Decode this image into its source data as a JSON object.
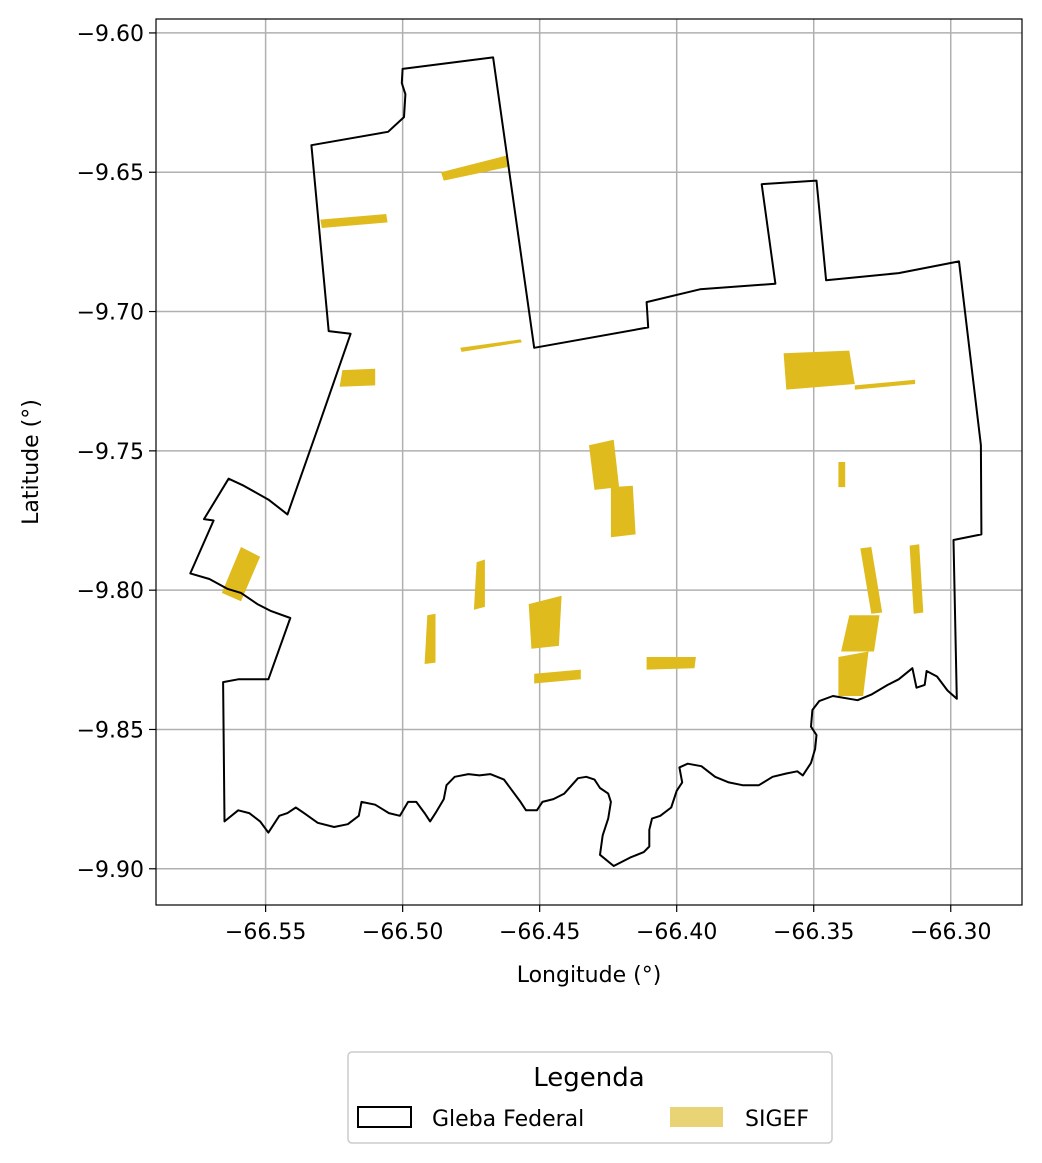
{
  "chart_data": {
    "type": "map",
    "xlabel": "Longitude (°)",
    "ylabel": "Latitude (°)",
    "xlim": [
      -66.59,
      -66.274
    ],
    "ylim": [
      -9.913,
      -9.595
    ],
    "x_ticks": [
      -66.55,
      -66.5,
      -66.45,
      -66.4,
      -66.35,
      -66.3
    ],
    "y_ticks": [
      -9.6,
      -9.65,
      -9.7,
      -9.75,
      -9.8,
      -9.85,
      -9.9
    ],
    "grid": true,
    "legend": {
      "title": "Legenda",
      "position": "bottom-center",
      "entries": [
        "Gleba Federal",
        "SIGEF"
      ]
    },
    "colors": {
      "gleba_outline": "#000000",
      "sigef_fill": "#dfbb1e",
      "sigef_legend_fill": "#e8d475",
      "grid": "#b0b0b0"
    },
    "gleba_federal_boundary": [
      [
        -66.5333,
        -9.6403
      ],
      [
        -66.5053,
        -9.6355
      ],
      [
        -66.4995,
        -9.6302
      ],
      [
        -66.499,
        -9.622
      ],
      [
        -66.5003,
        -9.618
      ],
      [
        -66.5,
        -9.6129
      ],
      [
        -66.467,
        -9.6088
      ],
      [
        -66.452,
        -9.713
      ],
      [
        -66.4104,
        -9.7057
      ],
      [
        -66.411,
        -9.6966
      ],
      [
        -66.3915,
        -9.692
      ],
      [
        -66.364,
        -9.69
      ],
      [
        -66.369,
        -9.6543
      ],
      [
        -66.349,
        -9.653
      ],
      [
        -66.3455,
        -9.6888
      ],
      [
        -66.319,
        -9.6862
      ],
      [
        -66.297,
        -9.682
      ],
      [
        -66.289,
        -9.748
      ],
      [
        -66.2888,
        -9.78
      ],
      [
        -66.299,
        -9.782
      ],
      [
        -66.2978,
        -9.839
      ],
      [
        -66.3012,
        -9.836
      ],
      [
        -66.305,
        -9.831
      ],
      [
        -66.3088,
        -9.829
      ],
      [
        -66.3095,
        -9.834
      ],
      [
        -66.3125,
        -9.835
      ],
      [
        -66.314,
        -9.828
      ],
      [
        -66.319,
        -9.832
      ],
      [
        -66.323,
        -9.834
      ],
      [
        -66.329,
        -9.8375
      ],
      [
        -66.334,
        -9.8395
      ],
      [
        -66.343,
        -9.838
      ],
      [
        -66.348,
        -9.8398
      ],
      [
        -66.3505,
        -9.843
      ],
      [
        -66.351,
        -9.849
      ],
      [
        -66.349,
        -9.852
      ],
      [
        -66.3495,
        -9.857
      ],
      [
        -66.351,
        -9.862
      ],
      [
        -66.354,
        -9.8665
      ],
      [
        -66.356,
        -9.865
      ],
      [
        -66.36,
        -9.8658
      ],
      [
        -66.365,
        -9.867
      ],
      [
        -66.37,
        -9.87
      ],
      [
        -66.376,
        -9.87
      ],
      [
        -66.381,
        -9.869
      ],
      [
        -66.386,
        -9.867
      ],
      [
        -66.391,
        -9.8632
      ],
      [
        -66.396,
        -9.8623
      ],
      [
        -66.399,
        -9.8636
      ],
      [
        -66.398,
        -9.869
      ],
      [
        -66.4,
        -9.872
      ],
      [
        -66.402,
        -9.878
      ],
      [
        -66.406,
        -9.881
      ],
      [
        -66.409,
        -9.882
      ],
      [
        -66.41,
        -9.886
      ],
      [
        -66.41,
        -9.892
      ],
      [
        -66.412,
        -9.894
      ],
      [
        -66.417,
        -9.896
      ],
      [
        -66.423,
        -9.899
      ],
      [
        -66.428,
        -9.895
      ],
      [
        -66.427,
        -9.888
      ],
      [
        -66.425,
        -9.882
      ],
      [
        -66.424,
        -9.876
      ],
      [
        -66.425,
        -9.873
      ],
      [
        -66.428,
        -9.871
      ],
      [
        -66.43,
        -9.868
      ],
      [
        -66.433,
        -9.867
      ],
      [
        -66.436,
        -9.8675
      ],
      [
        -66.441,
        -9.873
      ],
      [
        -66.445,
        -9.875
      ],
      [
        -66.449,
        -9.876
      ],
      [
        -66.451,
        -9.879
      ],
      [
        -66.455,
        -9.879
      ],
      [
        -66.457,
        -9.876
      ],
      [
        -66.46,
        -9.872
      ],
      [
        -66.463,
        -9.868
      ],
      [
        -66.468,
        -9.866
      ],
      [
        -66.472,
        -9.8665
      ],
      [
        -66.476,
        -9.866
      ],
      [
        -66.481,
        -9.867
      ],
      [
        -66.484,
        -9.87
      ],
      [
        -66.485,
        -9.875
      ],
      [
        -66.488,
        -9.88
      ],
      [
        -66.49,
        -9.883
      ],
      [
        -66.492,
        -9.88
      ],
      [
        -66.495,
        -9.876
      ],
      [
        -66.498,
        -9.876
      ],
      [
        -66.501,
        -9.881
      ],
      [
        -66.505,
        -9.88
      ],
      [
        -66.51,
        -9.877
      ],
      [
        -66.515,
        -9.876
      ],
      [
        -66.516,
        -9.881
      ],
      [
        -66.52,
        -9.884
      ],
      [
        -66.525,
        -9.885
      ],
      [
        -66.531,
        -9.8835
      ],
      [
        -66.536,
        -9.88
      ],
      [
        -66.539,
        -9.878
      ],
      [
        -66.542,
        -9.88
      ],
      [
        -66.545,
        -9.881
      ],
      [
        -66.549,
        -9.887
      ],
      [
        -66.552,
        -9.883
      ],
      [
        -66.556,
        -9.88
      ],
      [
        -66.56,
        -9.879
      ],
      [
        -66.565,
        -9.883
      ],
      [
        -66.5655,
        -9.833
      ],
      [
        -66.56,
        -9.832
      ],
      [
        -66.549,
        -9.832
      ],
      [
        -66.541,
        -9.81
      ],
      [
        -66.548,
        -9.8075
      ],
      [
        -66.553,
        -9.805
      ],
      [
        -66.559,
        -9.801
      ],
      [
        -66.564,
        -9.7995
      ],
      [
        -66.5705,
        -9.796
      ],
      [
        -66.5775,
        -9.794
      ],
      [
        -66.569,
        -9.775
      ],
      [
        -66.5725,
        -9.7745
      ],
      [
        -66.5635,
        -9.76
      ],
      [
        -66.558,
        -9.7625
      ],
      [
        -66.549,
        -9.7675
      ],
      [
        -66.542,
        -9.7728
      ],
      [
        -66.531,
        -9.742
      ],
      [
        -66.519,
        -9.708
      ],
      [
        -66.527,
        -9.707
      ]
    ],
    "sigef_parcels": [
      [
        [
          -66.486,
          -9.65
        ],
        [
          -66.462,
          -9.644
        ],
        [
          -66.461,
          -9.648
        ],
        [
          -66.485,
          -9.653
        ]
      ],
      [
        [
          -66.53,
          -9.667
        ],
        [
          -66.506,
          -9.665
        ],
        [
          -66.5055,
          -9.668
        ],
        [
          -66.5295,
          -9.67
        ]
      ],
      [
        [
          -66.479,
          -9.713
        ],
        [
          -66.457,
          -9.71
        ],
        [
          -66.4565,
          -9.711
        ],
        [
          -66.4785,
          -9.7145
        ]
      ],
      [
        [
          -66.522,
          -9.721
        ],
        [
          -66.51,
          -9.7205
        ],
        [
          -66.51,
          -9.7265
        ],
        [
          -66.523,
          -9.727
        ]
      ],
      [
        [
          -66.361,
          -9.715
        ],
        [
          -66.337,
          -9.714
        ],
        [
          -66.335,
          -9.726
        ],
        [
          -66.36,
          -9.728
        ]
      ],
      [
        [
          -66.335,
          -9.7265
        ],
        [
          -66.313,
          -9.7245
        ],
        [
          -66.313,
          -9.726
        ],
        [
          -66.335,
          -9.728
        ]
      ],
      [
        [
          -66.432,
          -9.748
        ],
        [
          -66.423,
          -9.746
        ],
        [
          -66.421,
          -9.763
        ],
        [
          -66.43,
          -9.764
        ]
      ],
      [
        [
          -66.424,
          -9.763
        ],
        [
          -66.416,
          -9.7625
        ],
        [
          -66.415,
          -9.78
        ],
        [
          -66.424,
          -9.781
        ]
      ],
      [
        [
          -66.341,
          -9.754
        ],
        [
          -66.3385,
          -9.754
        ],
        [
          -66.3385,
          -9.763
        ],
        [
          -66.341,
          -9.763
        ]
      ],
      [
        [
          -66.559,
          -9.7845
        ],
        [
          -66.552,
          -9.788
        ],
        [
          -66.559,
          -9.804
        ],
        [
          -66.566,
          -9.801
        ]
      ],
      [
        [
          -66.473,
          -9.79
        ],
        [
          -66.47,
          -9.789
        ],
        [
          -66.47,
          -9.806
        ],
        [
          -66.474,
          -9.807
        ]
      ],
      [
        [
          -66.333,
          -9.785
        ],
        [
          -66.329,
          -9.7845
        ],
        [
          -66.325,
          -9.808
        ],
        [
          -66.329,
          -9.8085
        ]
      ],
      [
        [
          -66.315,
          -9.784
        ],
        [
          -66.3115,
          -9.7835
        ],
        [
          -66.31,
          -9.808
        ],
        [
          -66.3135,
          -9.8085
        ]
      ],
      [
        [
          -66.454,
          -9.805
        ],
        [
          -66.442,
          -9.802
        ],
        [
          -66.443,
          -9.82
        ],
        [
          -66.453,
          -9.821
        ]
      ],
      [
        [
          -66.491,
          -9.809
        ],
        [
          -66.488,
          -9.8085
        ],
        [
          -66.488,
          -9.826
        ],
        [
          -66.492,
          -9.8265
        ]
      ],
      [
        [
          -66.337,
          -9.809
        ],
        [
          -66.326,
          -9.809
        ],
        [
          -66.328,
          -9.822
        ],
        [
          -66.34,
          -9.822
        ]
      ],
      [
        [
          -66.341,
          -9.824
        ],
        [
          -66.33,
          -9.822
        ],
        [
          -66.332,
          -9.838
        ],
        [
          -66.341,
          -9.838
        ]
      ],
      [
        [
          -66.411,
          -9.824
        ],
        [
          -66.393,
          -9.824
        ],
        [
          -66.3935,
          -9.828
        ],
        [
          -66.411,
          -9.8285
        ]
      ],
      [
        [
          -66.452,
          -9.83
        ],
        [
          -66.435,
          -9.8285
        ],
        [
          -66.435,
          -9.832
        ],
        [
          -66.452,
          -9.8335
        ]
      ]
    ]
  }
}
